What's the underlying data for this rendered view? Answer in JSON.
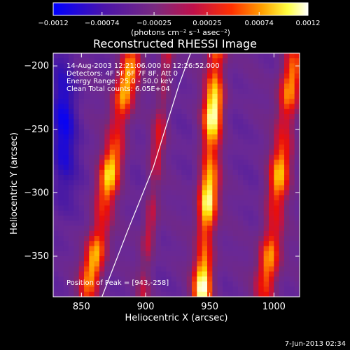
{
  "chart_data": [
    {
      "type": "heatmap",
      "title": "Reconstructed RHESSI Image",
      "xlabel": "Heliocentric X (arcsec)",
      "ylabel": "Heliocentric Y (arcsec)",
      "xlim": [
        828,
        1020
      ],
      "ylim": [
        -382,
        -190
      ],
      "x_ticks": [
        850,
        900,
        950,
        1000
      ],
      "x_tick_labels": [
        "850",
        "900",
        "950",
        "1000"
      ],
      "y_ticks": [
        -200,
        -250,
        -300,
        -350
      ],
      "y_tick_labels": [
        "−200",
        "−250",
        "−300",
        "−350"
      ],
      "colorscale": "red-temperature",
      "colorscale_stops": [
        "#0000ff",
        "#4b14aa",
        "#6e2a9a",
        "#b41e4b",
        "#e00a0a",
        "#ff6a00",
        "#ffd800",
        "#ffff80",
        "#ffffff"
      ],
      "annotations": [
        "14-Aug-2003 12:21:06.000 to 12:26:52.000",
        "Detectors: 4F 5F 6F 7F 8F, Att 0",
        "Energy Range: 25.0 - 50.0 keV",
        "Clean    Total counts: 6.05E+04"
      ],
      "peak_label": "Position of Peak = [943,-258]",
      "peak_position": [
        943,
        -258
      ],
      "limb_curve": {
        "x": [
          866,
          886,
          906,
          926,
          935
        ],
        "y": [
          -382,
          -330,
          -280,
          -215,
          -190
        ]
      },
      "ridges": [
        {
          "center": [
            855,
            -380
          ],
          "slope_x_per_y": 0.18,
          "width": 9,
          "peak_value": 0.0009
        },
        {
          "center": [
            944,
            -380
          ],
          "slope_x_per_y": 0.06,
          "width": 8,
          "peak_value": 0.00118
        },
        {
          "center": [
            993,
            -380
          ],
          "slope_x_per_y": 0.12,
          "width": 9,
          "peak_value": 0.0008
        },
        {
          "center": [
            898,
            -380
          ],
          "slope_x_per_y": 0.1,
          "width": 6,
          "peak_value": 0.0003
        }
      ],
      "minimum_region": {
        "center": [
          836,
          -250
        ],
        "value": -0.0011
      }
    },
    {
      "type": "colorbar",
      "range": [
        -0.0012,
        0.0012
      ],
      "tick_labels": [
        "−0.0012",
        "−0.00074",
        "−0.00025",
        "0.00025",
        "0.00074",
        "0.0012"
      ],
      "tick_values": [
        -0.0012,
        -0.00074,
        -0.00025,
        0.00025,
        0.00074,
        0.0012
      ],
      "unit_label": "(photons cm⁻² s⁻¹ asec⁻²)"
    }
  ],
  "footer": {
    "date": "7-Jun-2013 02:34"
  }
}
